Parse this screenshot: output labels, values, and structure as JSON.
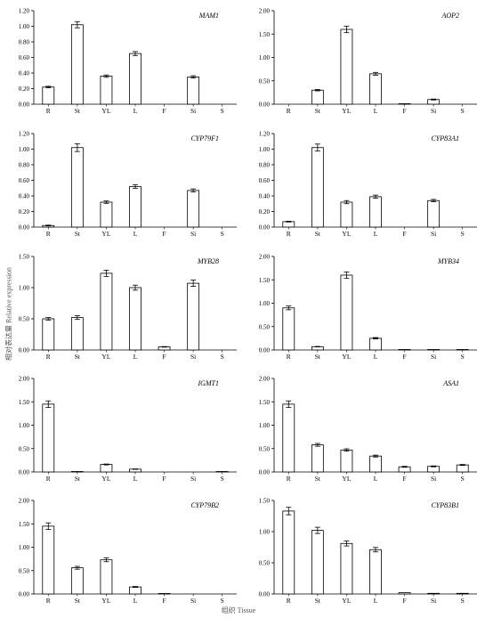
{
  "ylabel": "相对表达量 Relative expression",
  "xlabel": "组织 Tissue",
  "chart_data": [
    {
      "type": "bar",
      "title": "MAM1",
      "categories": [
        "R",
        "St",
        "YL",
        "L",
        "F",
        "Si",
        "S"
      ],
      "values": [
        0.22,
        1.02,
        0.36,
        0.65,
        0,
        0.35,
        0
      ],
      "errors": [
        0.01,
        0.04,
        0.015,
        0.025,
        0,
        0.015,
        0
      ],
      "ylim": [
        0,
        1.2
      ],
      "yticks": [
        "0.00",
        "0.20",
        "0.40",
        "0.60",
        "0.80",
        "1.00",
        "1.20"
      ]
    },
    {
      "type": "bar",
      "title": "AOP2",
      "categories": [
        "R",
        "St",
        "YL",
        "L",
        "F",
        "Si",
        "S"
      ],
      "values": [
        0,
        0.3,
        1.6,
        0.65,
        0.01,
        0.1,
        0
      ],
      "errors": [
        0,
        0.015,
        0.07,
        0.03,
        0,
        0.01,
        0
      ],
      "ylim": [
        0,
        2.0
      ],
      "yticks": [
        "0.00",
        "0.50",
        "1.00",
        "1.50",
        "2.00"
      ]
    },
    {
      "type": "bar",
      "title": "CYP79F1",
      "categories": [
        "R",
        "St",
        "YL",
        "L",
        "F",
        "Si",
        "S"
      ],
      "values": [
        0.02,
        1.02,
        0.32,
        0.52,
        0,
        0.47,
        0
      ],
      "errors": [
        0.005,
        0.05,
        0.015,
        0.025,
        0,
        0.02,
        0
      ],
      "ylim": [
        0,
        1.2
      ],
      "yticks": [
        "0.00",
        "0.20",
        "0.40",
        "0.60",
        "0.80",
        "1.00",
        "1.20"
      ]
    },
    {
      "type": "bar",
      "title": "CYP83A1",
      "categories": [
        "R",
        "St",
        "YL",
        "L",
        "F",
        "Si",
        "S"
      ],
      "values": [
        0.07,
        1.02,
        0.32,
        0.39,
        0,
        0.34,
        0
      ],
      "errors": [
        0.005,
        0.045,
        0.02,
        0.02,
        0,
        0.015,
        0
      ],
      "ylim": [
        0,
        1.2
      ],
      "yticks": [
        "0.00",
        "0.20",
        "0.40",
        "0.60",
        "0.80",
        "1.00",
        "1.20"
      ]
    },
    {
      "type": "bar",
      "title": "MYB28",
      "categories": [
        "R",
        "St",
        "YL",
        "L",
        "F",
        "Si",
        "S"
      ],
      "values": [
        0.5,
        0.52,
        1.23,
        1.0,
        0.05,
        1.07,
        0
      ],
      "errors": [
        0.02,
        0.03,
        0.05,
        0.04,
        0.005,
        0.05,
        0
      ],
      "ylim": [
        0,
        1.5
      ],
      "yticks": [
        "0.00",
        "0.50",
        "1.00",
        "1.50"
      ]
    },
    {
      "type": "bar",
      "title": "MYB34",
      "categories": [
        "R",
        "St",
        "YL",
        "L",
        "F",
        "Si",
        "S"
      ],
      "values": [
        0.9,
        0.07,
        1.6,
        0.25,
        0.01,
        0.01,
        0.01
      ],
      "errors": [
        0.04,
        0.005,
        0.07,
        0.015,
        0,
        0,
        0
      ],
      "ylim": [
        0,
        2.0
      ],
      "yticks": [
        "0.00",
        "0.50",
        "1.00",
        "1.50",
        "2.00"
      ]
    },
    {
      "type": "bar",
      "title": "IGMT1",
      "categories": [
        "R",
        "St",
        "YL",
        "L",
        "F",
        "Si",
        "S"
      ],
      "values": [
        1.45,
        0.01,
        0.16,
        0.06,
        0,
        0,
        0.01
      ],
      "errors": [
        0.07,
        0,
        0.01,
        0.005,
        0,
        0,
        0
      ],
      "ylim": [
        0,
        2.0
      ],
      "yticks": [
        "0.00",
        "0.50",
        "1.00",
        "1.50",
        "2.00"
      ]
    },
    {
      "type": "bar",
      "title": "ASA1",
      "categories": [
        "R",
        "St",
        "YL",
        "L",
        "F",
        "Si",
        "S"
      ],
      "values": [
        1.45,
        0.58,
        0.47,
        0.34,
        0.11,
        0.12,
        0.15
      ],
      "errors": [
        0.07,
        0.03,
        0.025,
        0.02,
        0.01,
        0.01,
        0.01
      ],
      "ylim": [
        0,
        2.0
      ],
      "yticks": [
        "0.00",
        "0.50",
        "1.00",
        "1.50",
        "2.00"
      ]
    },
    {
      "type": "bar",
      "title": "CYP79B2",
      "categories": [
        "R",
        "St",
        "YL",
        "L",
        "F",
        "Si",
        "S"
      ],
      "values": [
        1.45,
        0.56,
        0.73,
        0.15,
        0.01,
        0,
        0
      ],
      "errors": [
        0.07,
        0.03,
        0.04,
        0.01,
        0,
        0,
        0
      ],
      "ylim": [
        0,
        2.0
      ],
      "yticks": [
        "0.00",
        "0.50",
        "1.00",
        "1.50",
        "2.00"
      ]
    },
    {
      "type": "bar",
      "title": "CYP83B1",
      "categories": [
        "R",
        "St",
        "YL",
        "L",
        "F",
        "Si",
        "S"
      ],
      "values": [
        1.33,
        1.02,
        0.81,
        0.71,
        0.02,
        0.01,
        0.01
      ],
      "errors": [
        0.06,
        0.05,
        0.04,
        0.035,
        0,
        0,
        0
      ],
      "ylim": [
        0,
        1.5
      ],
      "yticks": [
        "0.00",
        "0.50",
        "1.00",
        "1.50"
      ]
    }
  ]
}
